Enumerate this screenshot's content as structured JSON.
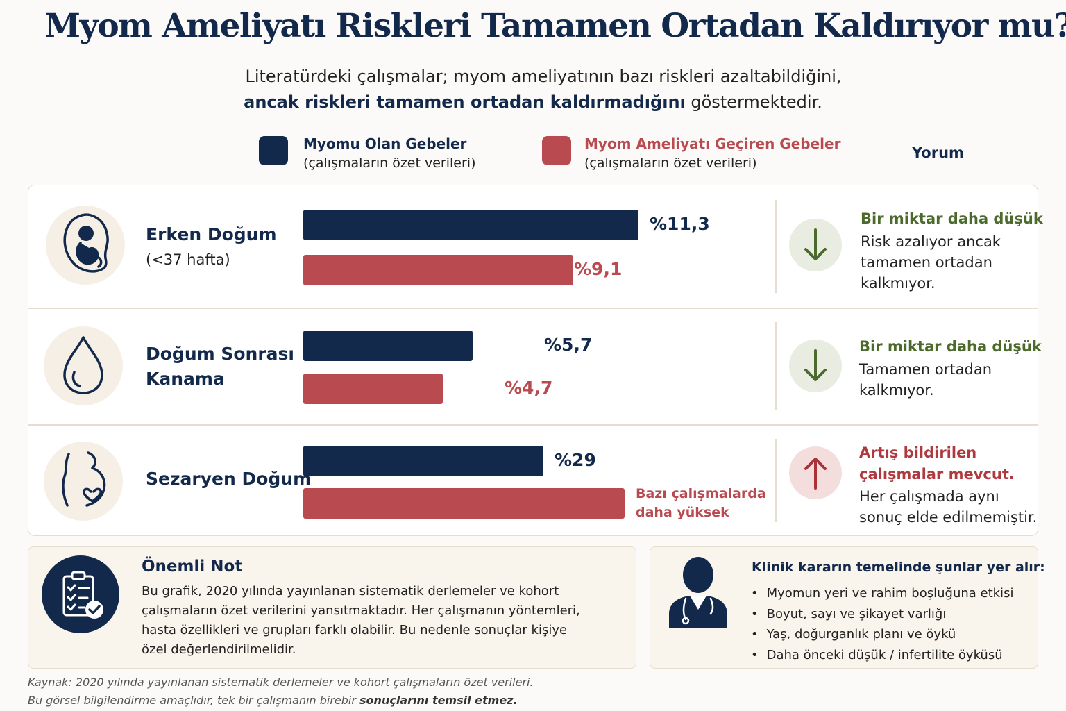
{
  "title": "Myom Ameliyatı Riskleri Tamamen Ortadan Kaldırıyor mu?",
  "subtitle": {
    "line1": "Literatürdeki çalışmalar;  myom ameliyatının bazı riskleri azaltabildiğini,",
    "line2_bold": "ancak riskleri tamamen ortadan kaldırmadığını",
    "line2_rest": " göstermektedir."
  },
  "legend": {
    "series1": {
      "name": "Myomu Olan Gebeler",
      "sub": "(çalışmaların özet verileri)",
      "color": "#13294b"
    },
    "series2": {
      "name": "Myom Ameliyatı Geçiren Gebeler",
      "sub": "(çalışmaların özet verileri)",
      "color": "#b84a50"
    },
    "yorum": "Yorum"
  },
  "chart_data": {
    "type": "bar",
    "orientation": "horizontal",
    "title": "Myom Ameliyatı Riskleri Tamamen Ortadan Kaldırıyor mu?",
    "categories": [
      "Erken Doğum (<37 hafta)",
      "Doğum Sonrası Kanama",
      "Sezaryen Doğum"
    ],
    "series": [
      {
        "name": "Myomu Olan Gebeler",
        "values": [
          11.3,
          5.7,
          29
        ],
        "labels": [
          "%11,3",
          "%5,7",
          "%29"
        ],
        "color": "#13294b"
      },
      {
        "name": "Myom Ameliyatı Geçiren Gebeler",
        "values": [
          9.1,
          4.7,
          null
        ],
        "labels": [
          "%9,1",
          "%4,7",
          "Bazı çalışmalarda daha yüksek"
        ],
        "color": "#b84a50"
      }
    ],
    "grid": false,
    "legend_position": "top"
  },
  "rows": [
    {
      "icon": "fetus-icon",
      "title_lines": [
        "Erken Doğum"
      ],
      "sub": "(<37 hafta)",
      "bar1_label": "%11,3",
      "bar2_label": "%9,1",
      "trend": "down",
      "comment_head": [
        "Bir miktar daha düşük"
      ],
      "comment_body": [
        "Risk azalıyor ancak",
        "tamamen ortadan",
        "kalkmıyor."
      ]
    },
    {
      "icon": "blood-drop-icon",
      "title_lines": [
        "Doğum Sonrası",
        "Kanama"
      ],
      "sub": "",
      "bar1_label": "%5,7",
      "bar2_label": "%4,7",
      "trend": "down",
      "comment_head": [
        "Bir miktar daha düşük"
      ],
      "comment_body": [
        "Tamamen ortadan",
        "kalkmıyor."
      ]
    },
    {
      "icon": "pregnant-belly-icon",
      "title_lines": [
        "Sezaryen Doğum"
      ],
      "sub": "",
      "bar1_label": "%29",
      "bar2_note": [
        "Bazı çalışmalarda",
        "daha yüksek"
      ],
      "trend": "up",
      "comment_head": [
        "Artış bildirilen",
        "çalışmalar mevcut."
      ],
      "comment_body": [
        "Her çalışmada aynı",
        "sonuç elde edilmemiştir."
      ]
    }
  ],
  "note": {
    "title": "Önemli Not",
    "text": "Bu grafik, 2020 yılında yayınlanan sistematik derlemeler ve kohort çalışmaların özet verilerini yansıtmaktadır. Her çalışmanın yöntemleri, hasta özellikleri ve grupları farklı olabilir. Bu nedenle sonuçlar kişiye özel değerlendirilmelidir."
  },
  "clinical": {
    "title": "Klinik kararın temelinde şunlar yer alır:",
    "items": [
      "Myomun yeri ve rahim boşluğuna etkisi",
      "Boyut, sayı ve şikayet varlığı",
      "Yaş, doğurganlık planı ve öykü",
      "Daha önceki düşük / infertilite öyküsü"
    ]
  },
  "footer": {
    "line1": "Kaynak: 2020 yılında yayınlanan sistematik derlemeler ve kohort çalışmaların özet verileri.",
    "line2_start": "Bu görsel bilgilendirme amaçlıdır, tek bir çalışmanın birebir ",
    "line2_bold": "sonuçlarını temsil etmez."
  }
}
